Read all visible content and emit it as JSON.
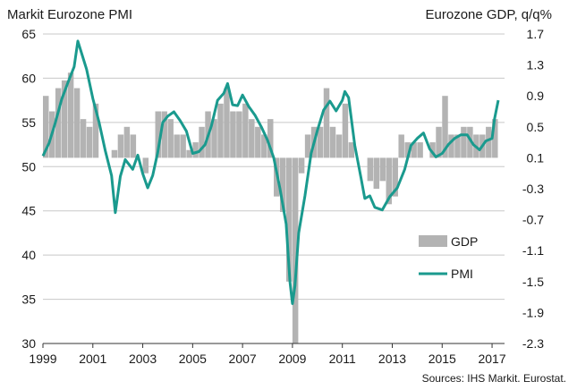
{
  "chart_data": {
    "type": "bar+line",
    "left_axis_title": "Markit Eurozone PMI",
    "right_axis_title": "Eurozone GDP, q/q%",
    "source": "Sources: IHS Markit. Eurostat.",
    "left_ylim": [
      30,
      65
    ],
    "left_ticks": [
      "30",
      "35",
      "40",
      "45",
      "50",
      "55",
      "60",
      "65"
    ],
    "right_ylim": [
      -2.3,
      1.7
    ],
    "right_ticks": [
      "-2.3",
      "-1.9",
      "-1.5",
      "-1.1",
      "-0.7",
      "-0.3",
      "0.1",
      "0.5",
      "0.9",
      "1.3",
      "1.7"
    ],
    "x_ticks": [
      "1999",
      "2001",
      "2003",
      "2005",
      "2007",
      "2009",
      "2011",
      "2013",
      "2015",
      "2017"
    ],
    "x_tick_values": [
      1999,
      2001,
      2003,
      2005,
      2007,
      2009,
      2011,
      2013,
      2015,
      2017
    ],
    "xlim": [
      1999,
      2017.5
    ],
    "grid": true,
    "legend": [
      "GDP",
      "PMI"
    ],
    "colors": {
      "gdp": "#b3b3b3",
      "pmi": "#1a9a8e",
      "grid": "#c8c8c8",
      "axis": "#333333"
    },
    "gdp_series": {
      "name": "GDP",
      "x": [
        1999.0,
        1999.25,
        1999.5,
        1999.75,
        2000.0,
        2000.25,
        2000.5,
        2000.75,
        2001.0,
        2001.25,
        2001.5,
        2001.75,
        2002.0,
        2002.25,
        2002.5,
        2002.75,
        2003.0,
        2003.25,
        2003.5,
        2003.75,
        2004.0,
        2004.25,
        2004.5,
        2004.75,
        2005.0,
        2005.25,
        2005.5,
        2005.75,
        2006.0,
        2006.25,
        2006.5,
        2006.75,
        2007.0,
        2007.25,
        2007.5,
        2007.75,
        2008.0,
        2008.25,
        2008.5,
        2008.75,
        2009.0,
        2009.25,
        2009.5,
        2009.75,
        2010.0,
        2010.25,
        2010.5,
        2010.75,
        2011.0,
        2011.25,
        2011.5,
        2011.75,
        2012.0,
        2012.25,
        2012.5,
        2012.75,
        2013.0,
        2013.25,
        2013.5,
        2013.75,
        2014.0,
        2014.25,
        2014.5,
        2014.75,
        2015.0,
        2015.25,
        2015.5,
        2015.75,
        2016.0,
        2016.25,
        2016.5,
        2016.75,
        2017.0
      ],
      "values": [
        0.9,
        0.7,
        1.0,
        1.1,
        1.2,
        1.0,
        0.6,
        0.5,
        0.8,
        0.1,
        0.1,
        0.2,
        0.4,
        0.5,
        0.4,
        0.1,
        -0.1,
        0.1,
        0.7,
        0.7,
        0.6,
        0.4,
        0.4,
        0.2,
        0.3,
        0.5,
        0.7,
        0.6,
        0.8,
        1.0,
        0.7,
        0.7,
        0.8,
        0.6,
        0.5,
        0.4,
        0.6,
        -0.4,
        -0.6,
        -1.5,
        -3.1,
        -0.1,
        0.4,
        0.5,
        0.5,
        1.0,
        0.5,
        0.4,
        0.8,
        0.3,
        0.1,
        0.1,
        -0.2,
        -0.3,
        -0.2,
        -0.5,
        -0.4,
        0.4,
        0.3,
        0.3,
        0.3,
        0.1,
        0.3,
        0.5,
        0.9,
        0.4,
        0.4,
        0.5,
        0.5,
        0.4,
        0.4,
        0.5,
        0.6
      ]
    },
    "pmi_series": {
      "name": "PMI",
      "x": [
        1999.0,
        1999.25,
        1999.5,
        1999.75,
        2000.0,
        2000.25,
        2000.4,
        2000.75,
        2001.0,
        2001.25,
        2001.5,
        2001.75,
        2001.9,
        2002.1,
        2002.3,
        2002.6,
        2002.8,
        2003.0,
        2003.2,
        2003.4,
        2003.6,
        2003.8,
        2004.0,
        2004.25,
        2004.5,
        2004.75,
        2005.0,
        2005.25,
        2005.5,
        2005.75,
        2006.0,
        2006.25,
        2006.4,
        2006.6,
        2006.8,
        2007.0,
        2007.25,
        2007.5,
        2007.75,
        2008.0,
        2008.25,
        2008.5,
        2008.75,
        2008.9,
        2009.0,
        2009.1,
        2009.25,
        2009.5,
        2009.75,
        2010.0,
        2010.25,
        2010.5,
        2010.75,
        2011.0,
        2011.1,
        2011.25,
        2011.5,
        2011.75,
        2011.9,
        2012.1,
        2012.3,
        2012.6,
        2012.9,
        2013.2,
        2013.5,
        2013.75,
        2014.0,
        2014.25,
        2014.5,
        2014.75,
        2015.0,
        2015.25,
        2015.5,
        2015.75,
        2016.0,
        2016.25,
        2016.5,
        2016.75,
        2017.0,
        2017.1,
        2017.25
      ],
      "values": [
        51.2,
        52.7,
        55.0,
        57.6,
        59.5,
        61.3,
        64.2,
        61.0,
        57.7,
        55.0,
        51.8,
        49.0,
        44.8,
        48.9,
        50.8,
        49.7,
        51.3,
        49.2,
        47.6,
        49.0,
        51.6,
        55.0,
        55.7,
        56.2,
        55.2,
        54.0,
        51.5,
        51.7,
        52.5,
        54.6,
        57.5,
        58.3,
        59.4,
        57.0,
        56.9,
        58.1,
        56.8,
        55.8,
        54.5,
        53.0,
        51.0,
        47.5,
        43.5,
        37.0,
        34.5,
        36.5,
        42.5,
        46.7,
        51.5,
        54.1,
        56.4,
        57.4,
        56.3,
        57.5,
        58.5,
        57.8,
        52.4,
        48.7,
        46.4,
        46.7,
        45.4,
        45.1,
        46.6,
        47.6,
        49.7,
        52.4,
        53.2,
        53.8,
        52.0,
        51.1,
        51.5,
        52.5,
        53.2,
        53.6,
        53.6,
        52.5,
        51.9,
        52.9,
        53.2,
        55.4,
        57.5
      ]
    }
  }
}
